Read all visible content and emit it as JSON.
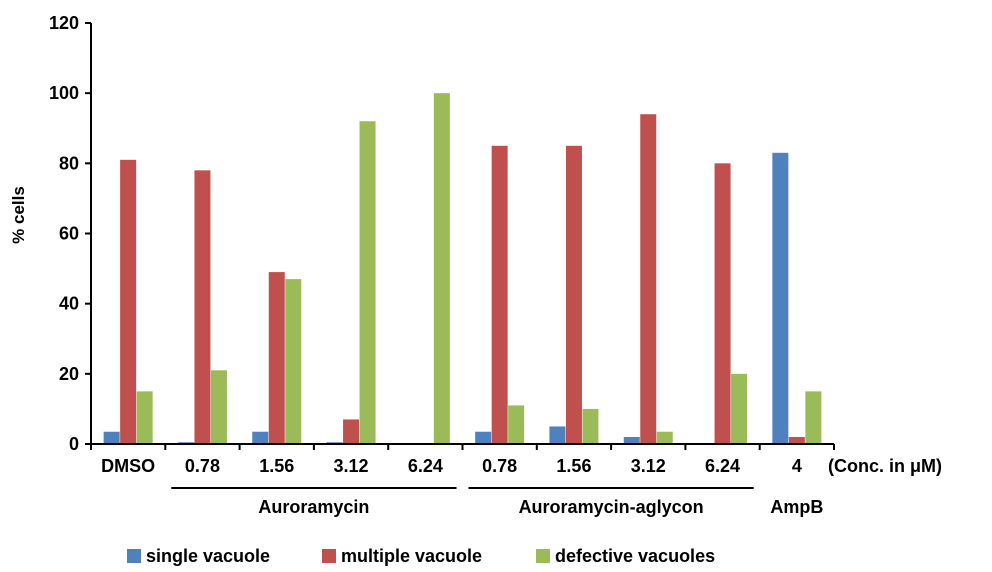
{
  "chart_data": {
    "type": "bar",
    "title": "",
    "xlabel": "",
    "ylabel": "% cells",
    "ylim": [
      0,
      120
    ],
    "yticks": [
      0,
      20,
      40,
      60,
      80,
      100,
      120
    ],
    "grid": false,
    "legend_position": "bottom",
    "unit_note": "(Conc. in μM)",
    "categories": [
      "DMSO",
      "0.78",
      "1.56",
      "3.12",
      "6.24",
      "0.78",
      "1.56",
      "3.12",
      "6.24",
      "4"
    ],
    "groups": [
      {
        "label": "Auroramycin",
        "from": 1,
        "to": 4,
        "underline": true
      },
      {
        "label": "Auroramycin-aglycon",
        "from": 5,
        "to": 8,
        "underline": true
      },
      {
        "label": "AmpB",
        "from": 9,
        "to": 9,
        "underline": false
      }
    ],
    "series": [
      {
        "name": "single vacuole",
        "color": "#4f81bd",
        "values": [
          3.5,
          0.5,
          3.5,
          0.5,
          0,
          3.5,
          5,
          2,
          0,
          83
        ]
      },
      {
        "name": "multiple vacuole",
        "color": "#c0504d",
        "values": [
          81,
          78,
          49,
          7,
          0,
          85,
          85,
          94,
          80,
          2
        ]
      },
      {
        "name": "defective vacuoles",
        "color": "#9bbb59",
        "values": [
          15,
          21,
          47,
          92,
          100,
          11,
          10,
          3.5,
          20,
          15
        ]
      }
    ]
  }
}
